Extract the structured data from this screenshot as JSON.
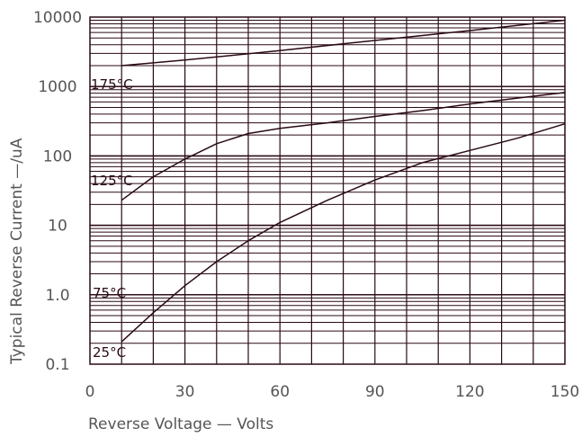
{
  "chart_data": {
    "type": "line",
    "xlabel": "Reverse Voltage  —  Volts",
    "ylabel": "Typical Reverse Current  —/uA",
    "xlim": [
      0,
      150
    ],
    "ylim": [
      0.1,
      10000
    ],
    "yscale": "log",
    "grid": true,
    "x_ticks": [
      "0",
      "30",
      "60",
      "90",
      "120",
      "150"
    ],
    "y_ticks": [
      "0.1",
      "1.0",
      "10",
      "100",
      "1000",
      "10000"
    ],
    "series": [
      {
        "name": "175°C",
        "x": [
          10,
          30,
          60,
          90,
          120,
          150
        ],
        "y": [
          2000,
          2400,
          3300,
          4600,
          6400,
          9000
        ]
      },
      {
        "name": "125°C",
        "x": [
          10,
          20,
          30,
          40,
          50,
          60,
          75,
          90,
          105,
          120,
          135,
          150
        ],
        "y": [
          23,
          50,
          90,
          150,
          210,
          250,
          300,
          370,
          450,
          560,
          680,
          820
        ]
      },
      {
        "name": "75°C",
        "x": [],
        "y": []
      },
      {
        "name": "25°C",
        "x": [
          10,
          20,
          30,
          40,
          50,
          60,
          75,
          90,
          105,
          120,
          135,
          150
        ],
        "y": [
          0.21,
          0.55,
          1.35,
          3.0,
          6.0,
          11,
          23,
          45,
          80,
          120,
          180,
          290
        ]
      }
    ],
    "color": "#2a0a14"
  }
}
